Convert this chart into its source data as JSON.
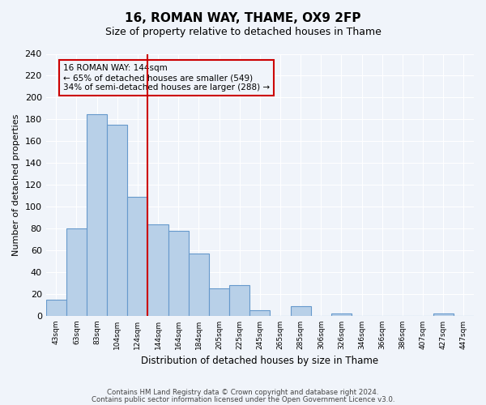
{
  "title": "16, ROMAN WAY, THAME, OX9 2FP",
  "subtitle": "Size of property relative to detached houses in Thame",
  "xlabel": "Distribution of detached houses by size in Thame",
  "ylabel": "Number of detached properties",
  "footer_line1": "Contains HM Land Registry data © Crown copyright and database right 2024.",
  "footer_line2": "Contains public sector information licensed under the Open Government Licence v3.0.",
  "bins": [
    "43sqm",
    "63sqm",
    "83sqm",
    "104sqm",
    "124sqm",
    "144sqm",
    "164sqm",
    "184sqm",
    "205sqm",
    "225sqm",
    "245sqm",
    "265sqm",
    "285sqm",
    "306sqm",
    "326sqm",
    "346sqm",
    "366sqm",
    "386sqm",
    "407sqm",
    "427sqm",
    "447sqm"
  ],
  "values": [
    15,
    80,
    185,
    175,
    109,
    84,
    78,
    57,
    25,
    28,
    5,
    0,
    9,
    0,
    2,
    0,
    0,
    0,
    0,
    2,
    0
  ],
  "bar_color": "#b8d0e8",
  "bar_edge_color": "#6699cc",
  "vline_x_index": 5,
  "vline_color": "#cc0000",
  "ylim": [
    0,
    240
  ],
  "yticks": [
    0,
    20,
    40,
    60,
    80,
    100,
    120,
    140,
    160,
    180,
    200,
    220,
    240
  ],
  "annotation_title": "16 ROMAN WAY: 144sqm",
  "annotation_line1": "← 65% of detached houses are smaller (549)",
  "annotation_line2": "34% of semi-detached houses are larger (288) →",
  "annotation_box_color": "#cc0000",
  "background_color": "#f0f4fa"
}
